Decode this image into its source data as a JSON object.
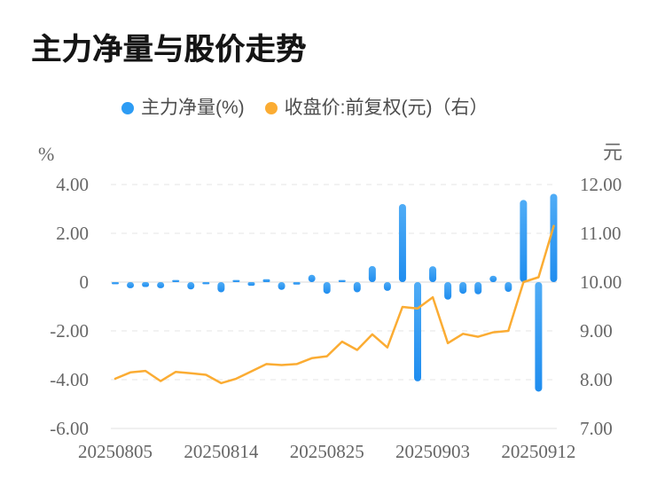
{
  "title": "主力净量与股价走势",
  "legend": [
    {
      "label": "主力净量(%)",
      "color": "#2D9CF4"
    },
    {
      "label": "收盘价:前复权(元)（右）",
      "color": "#FBAC33"
    }
  ],
  "chart_data": {
    "type": "bar+line",
    "categories": [
      "20250805",
      "20250806",
      "20250807",
      "20250808",
      "20250811",
      "20250812",
      "20250813",
      "20250814",
      "20250815",
      "20250818",
      "20250819",
      "20250820",
      "20250821",
      "20250822",
      "20250825",
      "20250826",
      "20250827",
      "20250828",
      "20250829",
      "20250901",
      "20250902",
      "20250903",
      "20250904",
      "20250905",
      "20250908",
      "20250909",
      "20250910",
      "20250911",
      "20250912",
      "20250915"
    ],
    "x_tick_labels": [
      "20250805",
      "20250814",
      "20250825",
      "20250903",
      "20250912"
    ],
    "x_tick_indices": [
      0,
      7,
      14,
      21,
      28
    ],
    "series": [
      {
        "name": "主力净量(%)",
        "type": "bar",
        "axis": "left",
        "color": "#2D9CF4",
        "values": [
          -0.05,
          -0.25,
          -0.2,
          -0.25,
          0.07,
          -0.3,
          -0.08,
          -0.42,
          0.05,
          -0.15,
          0.12,
          -0.32,
          -0.1,
          0.3,
          -0.48,
          0.05,
          -0.42,
          0.66,
          -0.36,
          3.2,
          -4.07,
          0.65,
          -0.72,
          -0.48,
          -0.5,
          0.26,
          -0.4,
          3.37,
          -4.49,
          3.62
        ]
      },
      {
        "name": "收盘价:前复权(元)",
        "type": "line",
        "axis": "right",
        "color": "#FBAC33",
        "values": [
          8.02,
          8.15,
          8.18,
          7.97,
          8.16,
          8.13,
          8.1,
          7.93,
          8.02,
          8.17,
          8.32,
          8.3,
          8.32,
          8.44,
          8.48,
          8.78,
          8.61,
          8.93,
          8.66,
          9.49,
          9.46,
          9.69,
          8.75,
          8.94,
          8.88,
          8.97,
          9.0,
          10.0,
          10.1,
          11.15
        ]
      }
    ],
    "left_axis": {
      "name": "%",
      "ticks": [
        "4.00",
        "2.00",
        "0",
        "-2.00",
        "-4.00",
        "-6.00"
      ],
      "tick_values": [
        4,
        2,
        0,
        -2,
        -4,
        -6
      ],
      "min": -6,
      "max": 4
    },
    "right_axis": {
      "name": "元",
      "ticks": [
        "12.00",
        "11.00",
        "10.00",
        "9.00",
        "8.00",
        "7.00"
      ],
      "tick_values": [
        12,
        11,
        10,
        9,
        8,
        7
      ],
      "min": 7,
      "max": 12
    },
    "grid": "dashed horizontal gridlines, legend top-center"
  },
  "colors": {
    "background": "#ffffff",
    "title_text": "#151515",
    "axis_text": "#666666",
    "legend_text": "#4d4d4d",
    "gridline": "#e6e6e6",
    "zero_line": "#d9d9d9",
    "bar_top": "#4FACF6",
    "bar_bottom": "#1F8DEF"
  }
}
